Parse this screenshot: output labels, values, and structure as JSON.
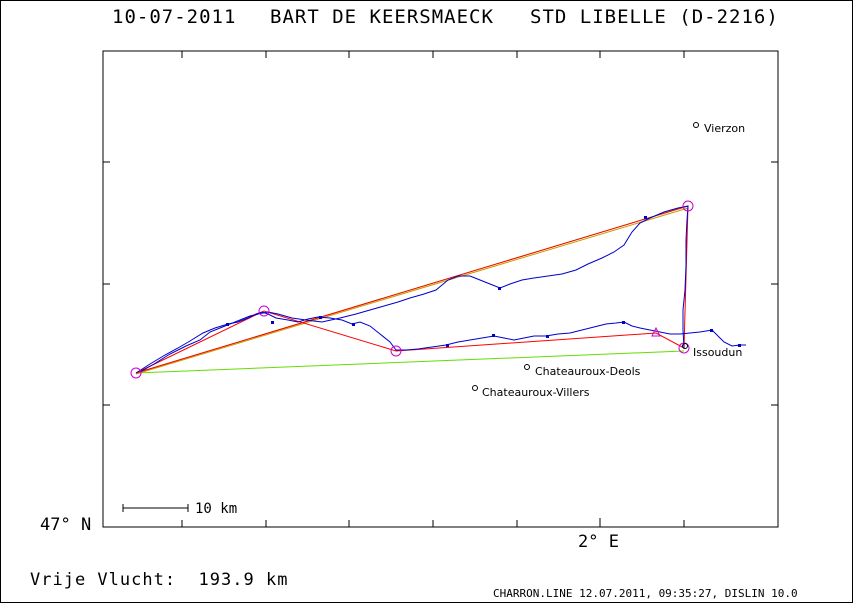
{
  "header": {
    "date": "10-07-2011",
    "pilot": "BART DE KEERSMAECK",
    "glider": "STD LIBELLE (D-2216)"
  },
  "axes": {
    "lat_label": "47° N",
    "lon_label": "2° E"
  },
  "scale_bar": {
    "label": "10 km"
  },
  "places": [
    {
      "name": "Vierzon"
    },
    {
      "name": "Issoudun"
    },
    {
      "name": "Chateauroux-Deols"
    },
    {
      "name": "Chateauroux-Villers"
    }
  ],
  "footer": {
    "distance_label": "Vrije Vlucht:",
    "distance_value": "193.9 km",
    "credit": "CHARRON.LINE 12.07.2011, 09:35:27, DISLIN 10.0"
  },
  "colors": {
    "track": "#0000cc",
    "task_red": "#ff0000",
    "task_green": "#66dd00",
    "task_orange": "#cc9900",
    "turnpoint": "#cc00cc"
  }
}
